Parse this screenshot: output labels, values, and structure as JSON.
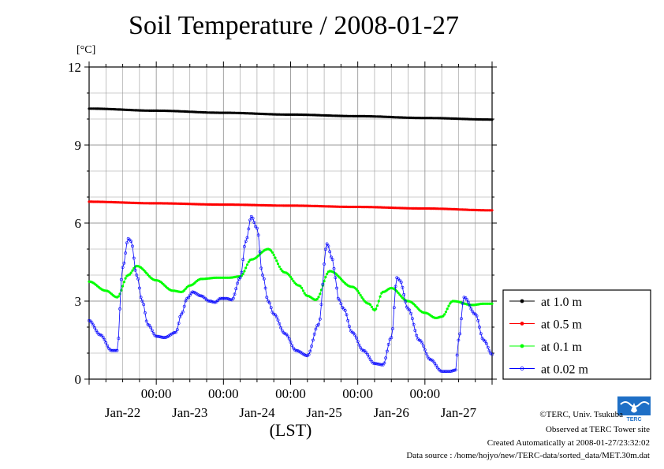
{
  "chart_data": {
    "type": "line",
    "title": "Soil Temperature / 2008-01-27",
    "ylabel": "[°C]",
    "xlabel": "(LST)",
    "ylim": [
      0,
      12
    ],
    "yticks": [
      0,
      3,
      6,
      9,
      12
    ],
    "xlim_hours": [
      0,
      144
    ],
    "x_tick_labels": [
      "00:00",
      "00:00",
      "00:00",
      "00:00",
      "00:00"
    ],
    "x_date_labels": [
      "Jan-22",
      "Jan-23",
      "Jan-24",
      "Jan-25",
      "Jan-26",
      "Jan-27"
    ],
    "grid": true,
    "legend_position": "right",
    "series": [
      {
        "name": "at 1.0 m",
        "color": "#000000",
        "x": [
          0,
          24,
          48,
          72,
          96,
          120,
          144
        ],
        "values": [
          10.4,
          10.32,
          10.24,
          10.17,
          10.11,
          10.04,
          9.98
        ]
      },
      {
        "name": "at 0.5 m",
        "color": "#ff0000",
        "x": [
          0,
          24,
          48,
          72,
          96,
          120,
          144
        ],
        "values": [
          6.82,
          6.76,
          6.71,
          6.67,
          6.62,
          6.56,
          6.49
        ]
      },
      {
        "name": "at 0.1 m",
        "color": "#00ff00",
        "x": [
          0,
          6,
          10,
          14,
          17,
          24,
          30,
          33,
          36,
          40,
          46,
          50,
          54,
          58,
          64,
          70,
          75,
          78,
          81,
          86,
          94,
          100,
          102,
          105,
          108,
          114,
          120,
          124,
          126,
          130,
          137,
          141,
          144
        ],
        "values": [
          3.75,
          3.4,
          3.15,
          4.0,
          4.35,
          3.8,
          3.4,
          3.35,
          3.6,
          3.85,
          3.9,
          3.9,
          3.95,
          4.6,
          5.0,
          4.1,
          3.6,
          3.2,
          3.05,
          4.15,
          3.55,
          2.9,
          2.65,
          3.35,
          3.5,
          3.0,
          2.55,
          2.35,
          2.4,
          3.0,
          2.85,
          2.9,
          2.9
        ]
      },
      {
        "name": "at 0.02 m",
        "color": "#0000ff",
        "x": [
          0,
          4,
          8,
          10,
          12,
          14,
          15,
          17,
          19,
          21,
          24,
          27,
          31,
          33,
          35,
          37,
          40,
          43,
          45,
          47,
          49,
          51,
          54,
          56,
          58,
          60,
          62,
          64,
          66,
          70,
          74,
          78,
          82,
          85,
          87,
          88,
          89,
          91,
          94,
          98,
          102,
          105,
          108,
          110,
          111,
          114,
          118,
          122,
          126,
          129,
          131,
          132,
          134,
          138,
          141,
          144
        ],
        "values": [
          2.25,
          1.7,
          1.1,
          1.1,
          4.3,
          5.4,
          5.3,
          4.0,
          3.0,
          2.1,
          1.65,
          1.6,
          1.8,
          2.5,
          3.1,
          3.35,
          3.2,
          3.0,
          2.95,
          3.1,
          3.1,
          3.05,
          3.9,
          5.3,
          6.25,
          5.8,
          4.0,
          3.0,
          2.5,
          1.75,
          1.1,
          0.9,
          2.1,
          5.2,
          4.6,
          3.9,
          3.1,
          2.7,
          1.8,
          1.1,
          0.6,
          0.55,
          1.6,
          3.9,
          3.8,
          2.7,
          1.5,
          0.75,
          0.3,
          0.3,
          0.35,
          1.5,
          3.15,
          2.5,
          1.5,
          0.95
        ]
      }
    ]
  },
  "credits": {
    "copyright": "©TERC, Univ. Tsukuba",
    "observed": "Observed at TERC Tower site",
    "created": "Created Automatically at 2008-01-27/23:32:02",
    "source": "Data source : /home/hojyo/new/TERC-data/sorted_data/MET.30m.dat"
  },
  "logo": {
    "text": "TERC",
    "color": "#1e6fc6"
  }
}
